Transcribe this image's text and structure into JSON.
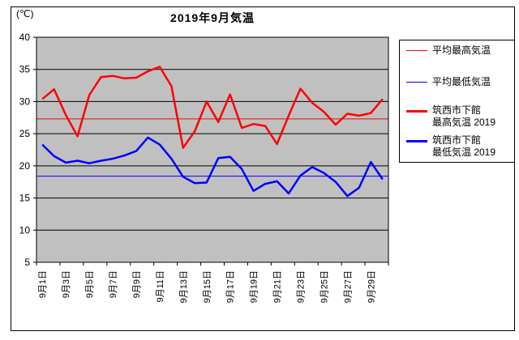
{
  "title": "2019年9月気温",
  "y_axis_unit": "(℃)",
  "legend": [
    {
      "label": "平均最高気温",
      "color": "#ff0000",
      "thick": false
    },
    {
      "label": "平均最低気温",
      "color": "#0000ff",
      "thick": false
    },
    {
      "label_line1": "筑西市下館",
      "label_line2": "最高気温 2019",
      "color": "#ff0000",
      "thick": true
    },
    {
      "label_line1": "筑西市下館",
      "label_line2": "最低気温 2019",
      "color": "#0000ff",
      "thick": true
    }
  ],
  "chart_data": {
    "type": "line",
    "title": "2019年9月気温",
    "ylabel": "(℃)",
    "ylim": [
      5,
      40
    ],
    "y_ticks": [
      40,
      35,
      30,
      25,
      20,
      15,
      10,
      5
    ],
    "grid": true,
    "plot_bg": "#c0c0c0",
    "n_points": 30,
    "x_label_step": 2,
    "x_labels": [
      "9月1日",
      "9月3日",
      "9月5日",
      "9月7日",
      "9月9日",
      "9月11日",
      "9月13日",
      "9月15日",
      "9月17日",
      "9月19日",
      "9月21日",
      "9月23日",
      "9月25日",
      "9月27日",
      "9月29日"
    ],
    "legend_position": "right",
    "series": [
      {
        "name": "平均最高気温",
        "type": "hline",
        "color": "#ff0000",
        "width": 1,
        "value": 27.3
      },
      {
        "name": "平均最低気温",
        "type": "hline",
        "color": "#0000ff",
        "width": 1,
        "value": 18.4
      },
      {
        "name": "筑西市下館 最高気温 2019",
        "type": "line",
        "color": "#ff0000",
        "width": 2.5,
        "values": [
          30.4,
          31.9,
          27.9,
          24.6,
          31.0,
          33.8,
          34.0,
          33.6,
          33.7,
          34.7,
          35.4,
          32.4,
          22.8,
          25.4,
          30.0,
          26.8,
          31.1,
          25.9,
          26.5,
          26.2,
          23.4,
          27.8,
          32.0,
          29.8,
          28.4,
          26.4,
          28.1,
          27.8,
          28.2,
          30.4
        ]
      },
      {
        "name": "筑西市下館 最低気温 2019",
        "type": "line",
        "color": "#0000ff",
        "width": 2.5,
        "values": [
          23.3,
          21.5,
          20.5,
          20.8,
          20.4,
          20.8,
          21.1,
          21.6,
          22.3,
          24.4,
          23.3,
          21.1,
          18.3,
          17.3,
          17.4,
          21.2,
          21.4,
          19.5,
          16.1,
          17.2,
          17.6,
          15.7,
          18.5,
          19.8,
          18.9,
          17.5,
          15.3,
          16.6,
          20.6,
          17.9
        ]
      }
    ]
  }
}
